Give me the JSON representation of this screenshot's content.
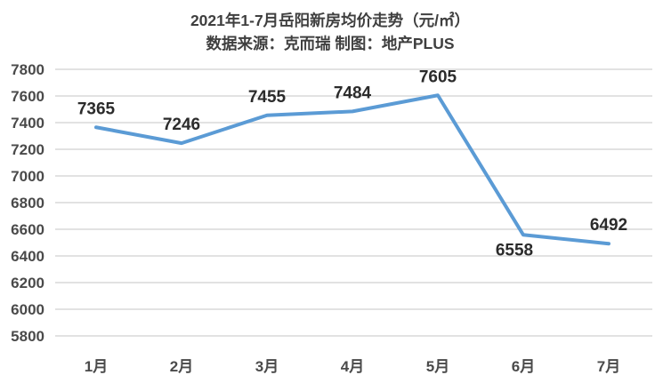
{
  "chart_data": {
    "type": "line",
    "title": "2021年1-7月岳阳新房均价走势（元/㎡）",
    "subtitle": "数据来源：克而瑞 制图：地产PLUS",
    "categories": [
      "1月",
      "2月",
      "3月",
      "4月",
      "5月",
      "6月",
      "7月"
    ],
    "values": [
      7365,
      7246,
      7455,
      7484,
      7605,
      6558,
      6492
    ],
    "data_labels": [
      "7365",
      "7246",
      "7455",
      "7484",
      "7605",
      "6558",
      "6492"
    ],
    "label_positions": [
      "above",
      "above",
      "above",
      "above",
      "above",
      "below",
      "above"
    ],
    "xlabel": "",
    "ylabel": "",
    "ylim": [
      5800,
      7800
    ],
    "ytick_step": 200,
    "yticks": [
      "7800",
      "7600",
      "7400",
      "7200",
      "7000",
      "6800",
      "6600",
      "6400",
      "6200",
      "6000",
      "5800"
    ],
    "grid": "horizontal",
    "legend": "none",
    "line_color": "#5B9BD5",
    "gridline_color": "#D9D9D9",
    "background_color": "#FFFFFF"
  }
}
